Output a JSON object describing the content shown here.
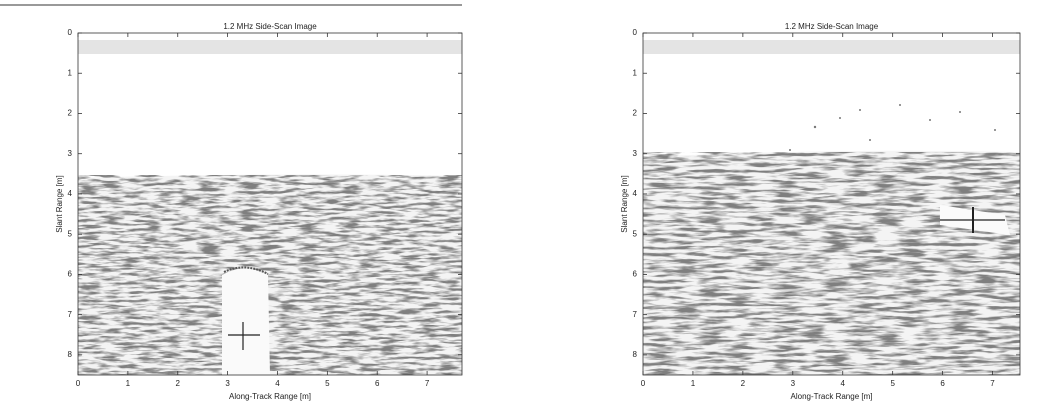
{
  "chart_data": [
    {
      "type": "image",
      "title": "1.2 MHz Side-Scan Image",
      "xlabel": "Along-Track Range [m]",
      "ylabel": "Slant Range [m]",
      "xlim": [
        0,
        7.7
      ],
      "ylim": [
        0,
        8.5
      ],
      "y_inverted": true,
      "xticks": [
        0,
        1,
        2,
        3,
        4,
        5,
        6,
        7
      ],
      "yticks": [
        0,
        1,
        2,
        3,
        4,
        5,
        6,
        7,
        8
      ]
    },
    {
      "type": "image",
      "title": "1.2 MHz Side-Scan Image",
      "xlabel": "Along-Track Range [m]",
      "ylabel": "Slant Range [m]",
      "xlim": [
        0,
        7.55
      ],
      "ylim": [
        0,
        8.5
      ],
      "y_inverted": true,
      "xticks": [
        0,
        1,
        2,
        3,
        4,
        5,
        6,
        7
      ],
      "yticks": [
        0,
        1,
        2,
        3,
        4,
        5,
        6,
        7,
        8
      ]
    }
  ]
}
